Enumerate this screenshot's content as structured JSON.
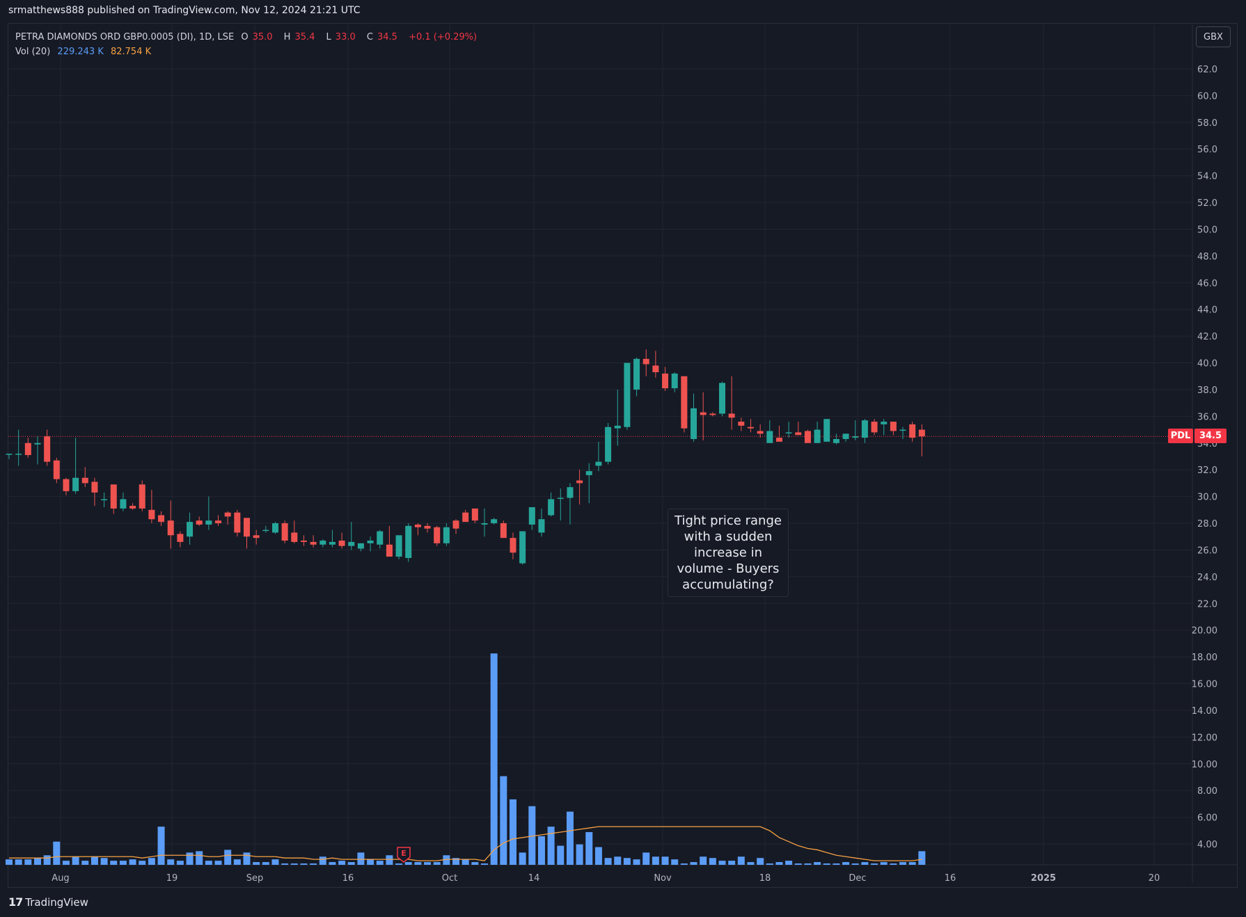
{
  "publisher_line": "srmatthews888 published on TradingView.com, Nov 12, 2024 21:21 UTC",
  "legend": {
    "symbol": "PETRA DIAMONDS ORD GBP0.0005 (DI), 1D, LSE",
    "open_label": "O",
    "open": "35.0",
    "high_label": "H",
    "high": "35.4",
    "low_label": "L",
    "low": "33.0",
    "close_label": "C",
    "close": "34.5",
    "change": "+0.1 (+0.29%)",
    "vol_label": "Vol (20)",
    "vol_value": "229.243 K",
    "vol_ma": "82.754 K"
  },
  "currency": "GBX",
  "ticker_tag": "PDL",
  "last_price_tag": "34.5",
  "annotation": "Tight price range with a sudden increase in volume - Buyers accumulating?",
  "earnings_marker": "E",
  "brand": "TradingView",
  "brand_logo": "17",
  "colors": {
    "up": "#26a69a",
    "down": "#ef5350",
    "volume": "#5b9cf6",
    "volume_ma": "#f7a142",
    "background": "#161a25",
    "grid": "#232632"
  },
  "chart_data": [
    {
      "type": "candlestick",
      "series_name": "PETRA DIAMONDS ORD GBP0.0005 (DI)",
      "x_tick_labels": [
        "Aug",
        "19",
        "Sep",
        "16",
        "Oct",
        "14",
        "Nov",
        "18",
        "Dec",
        "16",
        "2025",
        "20"
      ],
      "y_tick_labels": [
        "62.0",
        "60.0",
        "58.0",
        "56.0",
        "54.0",
        "52.0",
        "50.0",
        "48.0",
        "46.0",
        "44.0",
        "42.0",
        "40.0",
        "38.0",
        "36.0",
        "34.0",
        "32.0",
        "30.0",
        "28.0",
        "26.0",
        "24.0",
        "22.0",
        "20.00",
        "18.00",
        "16.00",
        "14.00",
        "12.00",
        "10.00",
        "8.00",
        "6.00",
        "4.00"
      ],
      "ylim": [
        4.0,
        62.0
      ],
      "last_price": 34.5,
      "ohlc": [
        [
          33.2,
          33.2,
          32.8,
          33.2
        ],
        [
          33.2,
          35.0,
          32.3,
          33.2
        ],
        [
          34.0,
          34.4,
          32.9,
          33.1
        ],
        [
          33.9,
          34.5,
          32.4,
          34
        ],
        [
          34.5,
          35.0,
          32.3,
          32.6
        ],
        [
          32.7,
          32.9,
          31.0,
          31.3
        ],
        [
          31.3,
          31.4,
          30.1,
          30.4
        ],
        [
          30.4,
          34.4,
          30.2,
          31.4
        ],
        [
          31.4,
          32.2,
          30.7,
          31.0
        ],
        [
          31.1,
          31.4,
          29.3,
          30.3
        ],
        [
          29.8,
          30.3,
          29.2,
          29.8
        ],
        [
          30.9,
          30.9,
          28.7,
          29.1
        ],
        [
          29.1,
          30.3,
          28.9,
          29.8
        ],
        [
          29.3,
          29.5,
          29.0,
          29.1
        ],
        [
          30.9,
          31.2,
          28.9,
          29.1
        ],
        [
          29.0,
          30.5,
          28.0,
          28.3
        ],
        [
          28.6,
          28.9,
          27.8,
          28.1
        ],
        [
          28.2,
          29.7,
          26.1,
          27.1
        ],
        [
          27.2,
          27.4,
          26.2,
          26.6
        ],
        [
          27.0,
          28.8,
          26.4,
          28.1
        ],
        [
          28.2,
          28.5,
          27.8,
          27.9
        ],
        [
          27.9,
          30.0,
          27.5,
          28.2
        ],
        [
          28.2,
          28.6,
          27.8,
          28.0
        ],
        [
          28.8,
          28.9,
          27.9,
          28.5
        ],
        [
          28.8,
          29.0,
          27.0,
          27.3
        ],
        [
          28.4,
          28.4,
          26.1,
          27.0
        ],
        [
          27.1,
          27.5,
          26.4,
          26.9
        ],
        [
          27.5,
          27.8,
          27.3,
          27.5
        ],
        [
          27.3,
          28.1,
          27.2,
          28.0
        ],
        [
          28.0,
          28.2,
          26.5,
          26.7
        ],
        [
          27.3,
          28.2,
          26.5,
          26.6
        ],
        [
          26.7,
          27.1,
          26.3,
          26.6
        ],
        [
          26.6,
          27.1,
          26.2,
          26.4
        ],
        [
          26.4,
          26.8,
          26.2,
          26.7
        ],
        [
          26.4,
          27.5,
          26.2,
          26.6
        ],
        [
          26.7,
          27.3,
          26.1,
          26.3
        ],
        [
          26.3,
          28.1,
          26.0,
          26.6
        ],
        [
          26.1,
          26.5,
          25.9,
          26.5
        ],
        [
          26.5,
          27.0,
          25.9,
          26.7
        ],
        [
          26.4,
          27.5,
          26.1,
          27.4
        ],
        [
          26.4,
          27.8,
          25.8,
          25.5
        ],
        [
          25.5,
          26.9,
          25.3,
          27.1
        ],
        [
          25.4,
          28.0,
          25.1,
          27.8
        ],
        [
          27.9,
          28.0,
          27.1,
          27.7
        ],
        [
          27.8,
          28.0,
          27.3,
          27.6
        ],
        [
          27.7,
          27.8,
          26.3,
          26.5
        ],
        [
          26.5,
          28.0,
          26.3,
          27.7
        ],
        [
          28.2,
          28.3,
          27.2,
          27.6
        ],
        [
          28.8,
          29.0,
          28.2,
          28.1
        ],
        [
          29.1,
          29.1,
          28.0,
          28.2
        ],
        [
          27.9,
          29.1,
          27.0,
          28.0
        ],
        [
          28.0,
          28.4,
          27.9,
          28.3
        ],
        [
          28.0,
          28.2,
          26.9,
          26.9
        ],
        [
          26.9,
          27.3,
          25.3,
          25.8
        ],
        [
          25.0,
          27.4,
          24.9,
          27.4
        ],
        [
          27.9,
          28.8,
          27.5,
          29.2
        ],
        [
          27.3,
          29.1,
          27.0,
          28.3
        ],
        [
          28.6,
          30.3,
          28.5,
          29.8
        ],
        [
          29.9,
          30.6,
          28.2,
          29.9
        ],
        [
          29.9,
          31.0,
          27.9,
          30.7
        ],
        [
          31.2,
          32.0,
          29.4,
          31.0
        ],
        [
          31.6,
          32.5,
          29.5,
          31.9
        ],
        [
          32.3,
          34.1,
          31.9,
          32.6
        ],
        [
          32.6,
          35.5,
          32.4,
          35.2
        ],
        [
          35.1,
          38.0,
          33.8,
          35.3
        ],
        [
          35.2,
          40.0,
          35.0,
          40.0
        ],
        [
          38.0,
          40.4,
          37.5,
          40.3
        ],
        [
          40.3,
          41.0,
          39.0,
          39.9
        ],
        [
          39.8,
          40.9,
          38.9,
          39.3
        ],
        [
          39.2,
          39.7,
          37.9,
          38.1
        ],
        [
          38.1,
          39.3,
          37.8,
          39.2
        ],
        [
          39.0,
          39.0,
          34.8,
          35.1
        ],
        [
          34.3,
          37.7,
          34.1,
          36.6
        ],
        [
          36.3,
          37.8,
          34.2,
          36.1
        ],
        [
          36.2,
          36.3,
          36.0,
          36.1
        ],
        [
          36.2,
          38.6,
          36.0,
          38.5
        ],
        [
          36.2,
          39.0,
          35.0,
          35.9
        ],
        [
          35.6,
          35.9,
          34.9,
          35.3
        ],
        [
          35.2,
          35.8,
          34.8,
          35.1
        ],
        [
          34.9,
          35.4,
          34.4,
          34.7
        ],
        [
          34.0,
          35.7,
          34.0,
          34.9
        ],
        [
          34.4,
          35.3,
          34.2,
          34.1
        ],
        [
          34.8,
          35.6,
          34.4,
          34.8
        ],
        [
          34.8,
          35.6,
          34.7,
          34.6
        ],
        [
          34.9,
          35.0,
          34.2,
          34.0
        ],
        [
          34.0,
          35.6,
          34.2,
          35.0
        ],
        [
          34.1,
          35.7,
          34.2,
          35.8
        ],
        [
          34.0,
          34.7,
          33.9,
          34.3
        ],
        [
          34.3,
          34.7,
          34.1,
          34.7
        ],
        [
          34.4,
          35.7,
          34.2,
          34.5
        ],
        [
          34.4,
          35.8,
          34.0,
          35.7
        ],
        [
          35.6,
          35.8,
          34.6,
          34.8
        ],
        [
          35.4,
          35.8,
          34.6,
          35.6
        ],
        [
          35.6,
          35.5,
          34.6,
          34.9
        ],
        [
          35.0,
          35.2,
          34.3,
          35.0
        ],
        [
          35.4,
          35.6,
          34.1,
          34.4
        ],
        [
          35.0,
          35.4,
          33.0,
          34.5
        ]
      ]
    },
    {
      "type": "bar",
      "series_name": "Vol (20)",
      "values": [
        0.4,
        0.4,
        0.4,
        0.5,
        0.7,
        1.7,
        0.3,
        0.6,
        0.3,
        0.6,
        0.5,
        0.3,
        0.3,
        0.4,
        0.3,
        0.5,
        2.8,
        0.4,
        0.3,
        0.9,
        1.0,
        0.3,
        0.3,
        1.1,
        0.4,
        0.9,
        0.2,
        0.2,
        0.4,
        0.1,
        0.1,
        0.1,
        0.1,
        0.6,
        0.2,
        0.3,
        0.2,
        0.9,
        0.4,
        0.3,
        0.7,
        0.1,
        0.2,
        0.2,
        0.2,
        0.2,
        0.7,
        0.5,
        0.4,
        0.2,
        0.1,
        15.5,
        6.5,
        4.8,
        0.9,
        4.3,
        2.1,
        2.8,
        1.4,
        3.9,
        1.5,
        2.4,
        1.3,
        0.5,
        0.6,
        0.5,
        0.4,
        0.9,
        0.6,
        0.6,
        0.4,
        0.1,
        0.2,
        0.6,
        0.5,
        0.3,
        0.3,
        0.6,
        0.2,
        0.5,
        0.1,
        0.2,
        0.3,
        0.1,
        0.1,
        0.2,
        0.1,
        0.1,
        0.2,
        0.1,
        0.2,
        0.1,
        0.2,
        0.1,
        0.2,
        0.2,
        1.0
      ],
      "ma_values": [
        0.5,
        0.5,
        0.5,
        0.5,
        0.5,
        0.6,
        0.6,
        0.6,
        0.6,
        0.6,
        0.6,
        0.6,
        0.6,
        0.6,
        0.5,
        0.6,
        0.7,
        0.7,
        0.7,
        0.7,
        0.7,
        0.6,
        0.6,
        0.7,
        0.7,
        0.7,
        0.6,
        0.6,
        0.6,
        0.5,
        0.5,
        0.5,
        0.4,
        0.4,
        0.5,
        0.4,
        0.4,
        0.4,
        0.4,
        0.4,
        0.4,
        0.4,
        0.4,
        0.3,
        0.3,
        0.3,
        0.4,
        0.4,
        0.4,
        0.4,
        0.3,
        1.1,
        1.6,
        1.9,
        2.0,
        2.1,
        2.2,
        2.3,
        2.4,
        2.5,
        2.6,
        2.7,
        2.8,
        2.8,
        2.8,
        2.8,
        2.8,
        2.8,
        2.8,
        2.8,
        2.8,
        2.8,
        2.8,
        2.8,
        2.8,
        2.8,
        2.8,
        2.8,
        2.8,
        2.8,
        2.5,
        2.0,
        1.7,
        1.4,
        1.2,
        1.1,
        0.9,
        0.7,
        0.6,
        0.5,
        0.4,
        0.3,
        0.3,
        0.3,
        0.3,
        0.3,
        0.4
      ]
    }
  ]
}
